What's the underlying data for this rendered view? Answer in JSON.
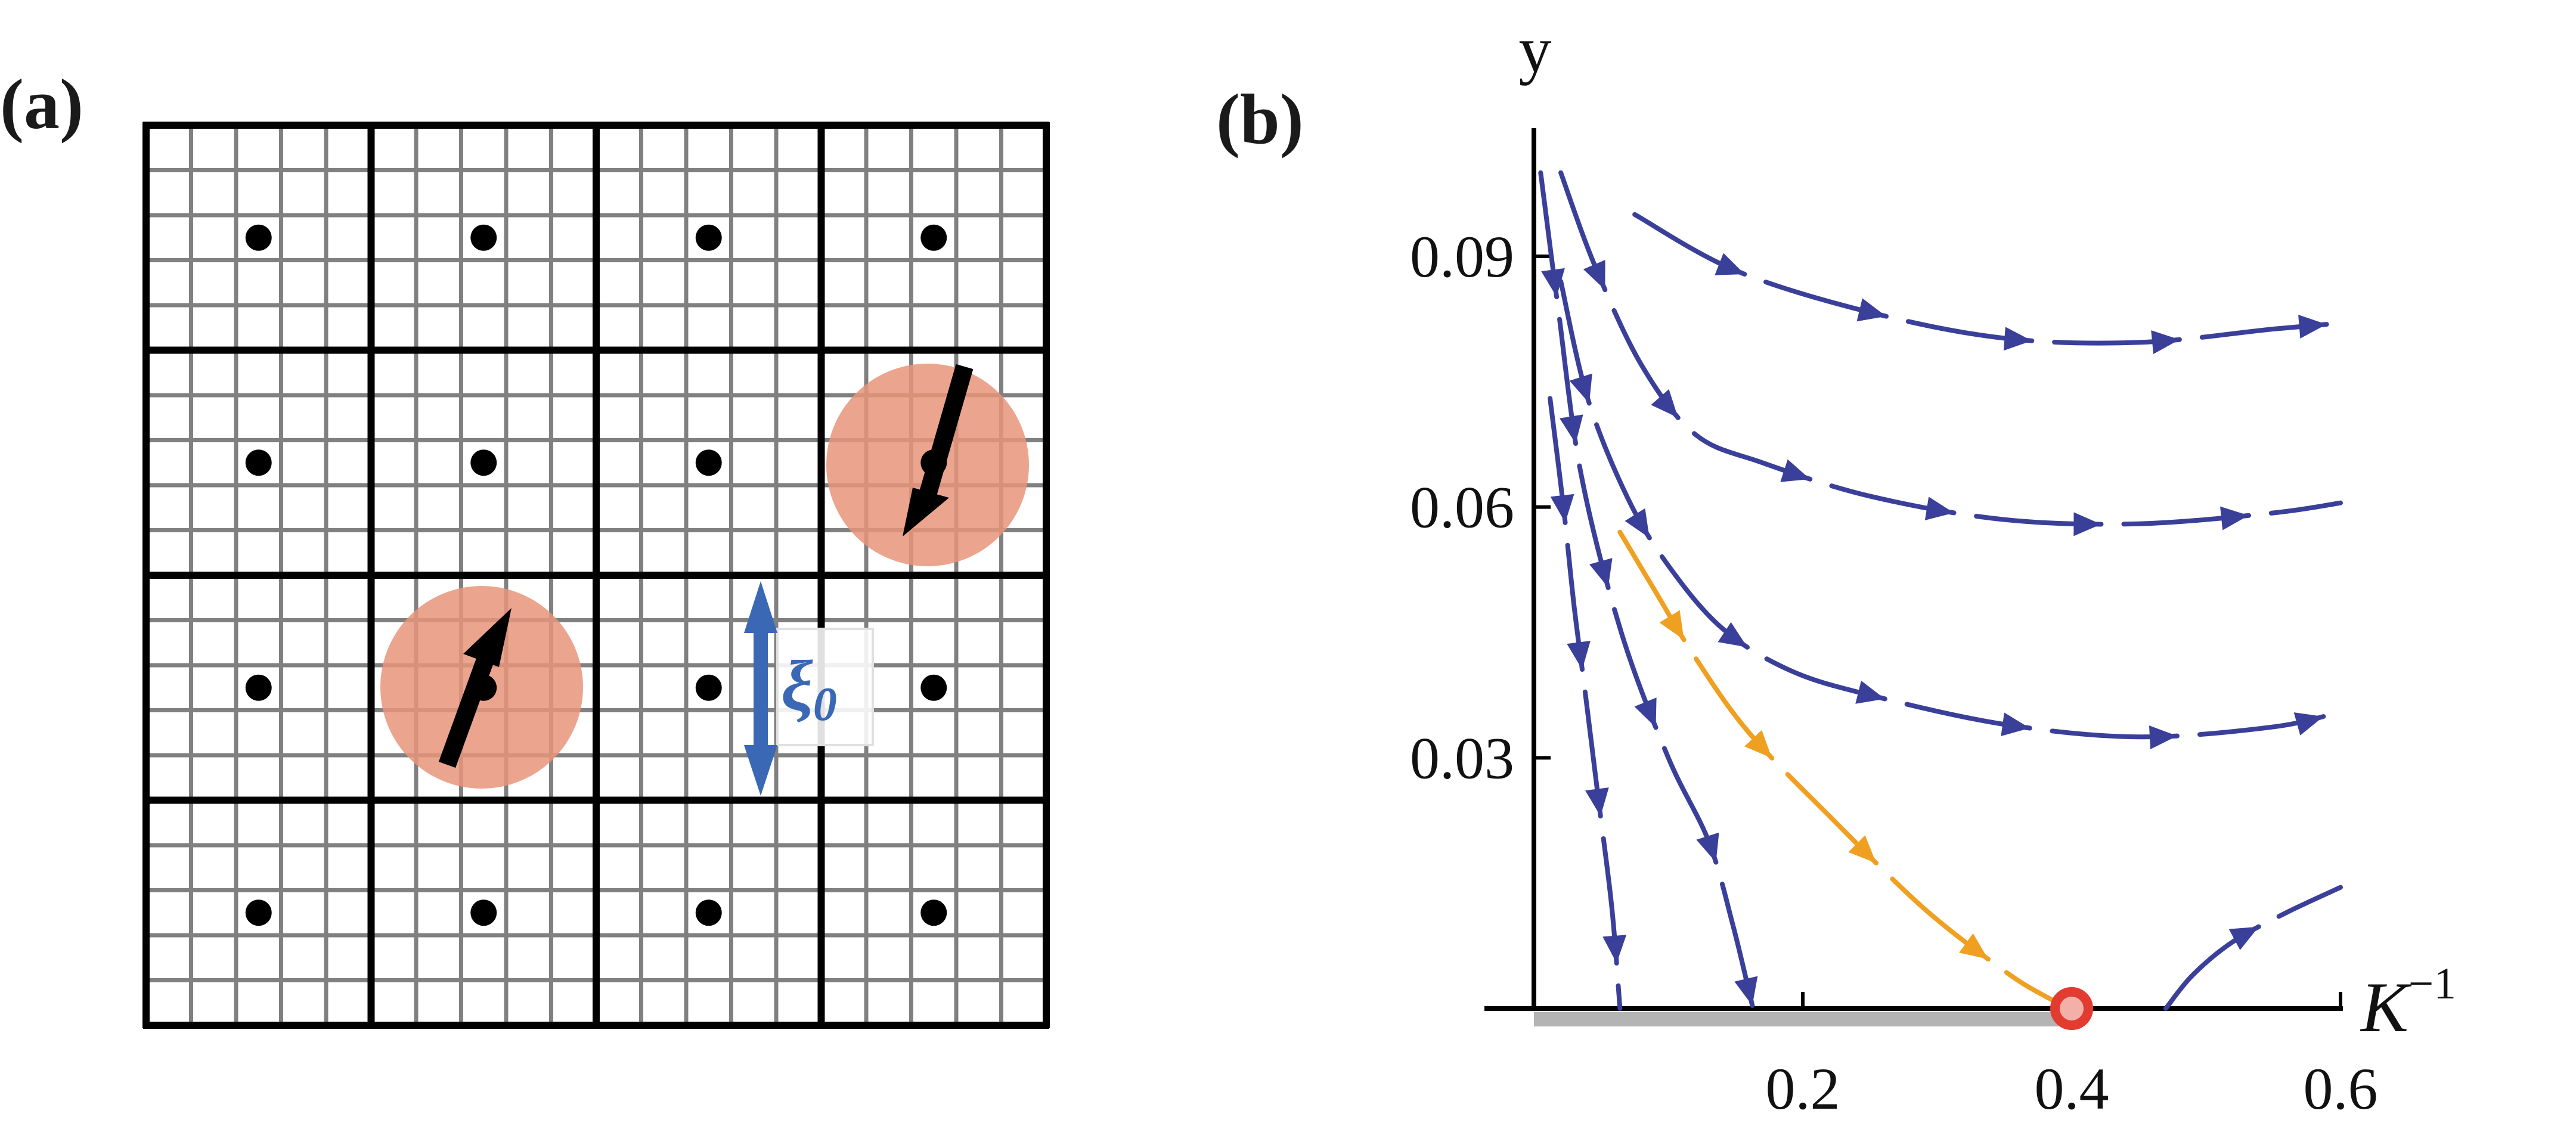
{
  "panels": {
    "a": {
      "label": "(a)",
      "blocks": 4,
      "subcells": 5,
      "scale_label": "ξ",
      "scale_subscript": "0"
    },
    "b": {
      "label": "(b)"
    }
  },
  "colors": {
    "grid_bold": "#000000",
    "grid_fine": "#808080",
    "spin_region": "#e8957a",
    "flow": "#3a3f9a",
    "separatrix": "#f0a020",
    "fixed_point": "#e23b30",
    "critical_line": "#b4b4b4",
    "xi_arrow": "#3a68b5"
  },
  "chart_data": {
    "type": "line",
    "title": "",
    "xlabel": "K",
    "xlabel_sup": "−1",
    "ylabel": "y",
    "xlim": [
      0,
      0.62
    ],
    "ylim": [
      0,
      0.1
    ],
    "xticks": [
      0.2,
      0.4,
      0.6
    ],
    "xtick_labels": [
      "0.2",
      "0.4",
      "0.6"
    ],
    "yticks": [
      0.03,
      0.06,
      0.09
    ],
    "ytick_labels": [
      "0.03",
      "0.06",
      "0.09"
    ],
    "fixed_point": {
      "x": 0.4,
      "y": 0
    },
    "critical_line": {
      "x_from": 0,
      "x_to": 0.4,
      "y": 0
    },
    "series": [
      {
        "kind": "flow",
        "x": [
          0.075,
          0.15,
          0.25,
          0.35,
          0.45,
          0.55,
          0.6
        ],
        "y": [
          0.095,
          0.0883,
          0.0833,
          0.0802,
          0.0797,
          0.0813,
          0.082
        ]
      },
      {
        "kind": "flow",
        "x": [
          0.02,
          0.045,
          0.08,
          0.12,
          0.17,
          0.25,
          0.35,
          0.45,
          0.55,
          0.6
        ],
        "y": [
          0.1,
          0.089,
          0.077,
          0.0687,
          0.0653,
          0.0613,
          0.0585,
          0.058,
          0.0593,
          0.0605
        ]
      },
      {
        "kind": "flow",
        "x": [
          0.02,
          0.04,
          0.07,
          0.1,
          0.14,
          0.19,
          0.25,
          0.35,
          0.45,
          0.55,
          0.6
        ],
        "y": [
          0.087,
          0.073,
          0.061,
          0.053,
          0.0455,
          0.0405,
          0.0375,
          0.034,
          0.0325,
          0.0337,
          0.0355
        ]
      },
      {
        "kind": "flow",
        "x": [
          0.005,
          0.018,
          0.035,
          0.065,
          0.1,
          0.13,
          0.148,
          0.163
        ],
        "y": [
          0.1,
          0.0838,
          0.064,
          0.045,
          0.03,
          0.02,
          0.01,
          0
        ]
      },
      {
        "kind": "flow",
        "x": [
          0.012,
          0.022,
          0.03,
          0.038,
          0.048,
          0.058,
          0.064
        ],
        "y": [
          0.073,
          0.06,
          0.048,
          0.038,
          0.025,
          0.012,
          0
        ]
      },
      {
        "kind": "flow",
        "x": [
          0.47,
          0.49,
          0.52,
          0.56,
          0.6
        ],
        "y": [
          0,
          0.004,
          0.008,
          0.0115,
          0.0145
        ]
      },
      {
        "kind": "separatrix",
        "x": [
          0.064,
          0.09,
          0.12,
          0.16,
          0.22,
          0.29,
          0.35,
          0.38,
          0.4
        ],
        "y": [
          0.057,
          0.05,
          0.042,
          0.033,
          0.023,
          0.012,
          0.0045,
          0.0015,
          0
        ]
      }
    ]
  }
}
